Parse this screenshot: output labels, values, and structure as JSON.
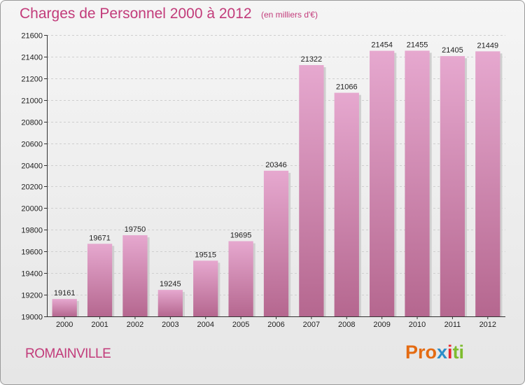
{
  "title": "Charges de Personnel 2000 à 2012",
  "subtitle": "(en milliers d'€)",
  "city": "ROMAINVILLE",
  "logo": {
    "p1": "Pro",
    "p2": "x",
    "p3": "i",
    "p4": "ti"
  },
  "colors": {
    "accent": "#c23b7a",
    "bar_light": "#e6a8cf",
    "bar_dark": "#b5678f"
  },
  "chart_data": {
    "type": "bar",
    "title": "Charges de Personnel 2000 à 2012",
    "subtitle": "(en milliers d'€)",
    "categories": [
      "2000",
      "2001",
      "2002",
      "2003",
      "2004",
      "2005",
      "2006",
      "2007",
      "2008",
      "2009",
      "2010",
      "2011",
      "2012"
    ],
    "values": [
      19161,
      19671,
      19750,
      19245,
      19515,
      19695,
      20346,
      21322,
      21066,
      21454,
      21455,
      21405,
      21449
    ],
    "ylim": [
      19000,
      21600
    ],
    "yticks": [
      19000,
      19200,
      19400,
      19600,
      19800,
      20000,
      20200,
      20400,
      20600,
      20800,
      21000,
      21200,
      21400,
      21600
    ],
    "grid": true,
    "xlabel": "",
    "ylabel": ""
  }
}
